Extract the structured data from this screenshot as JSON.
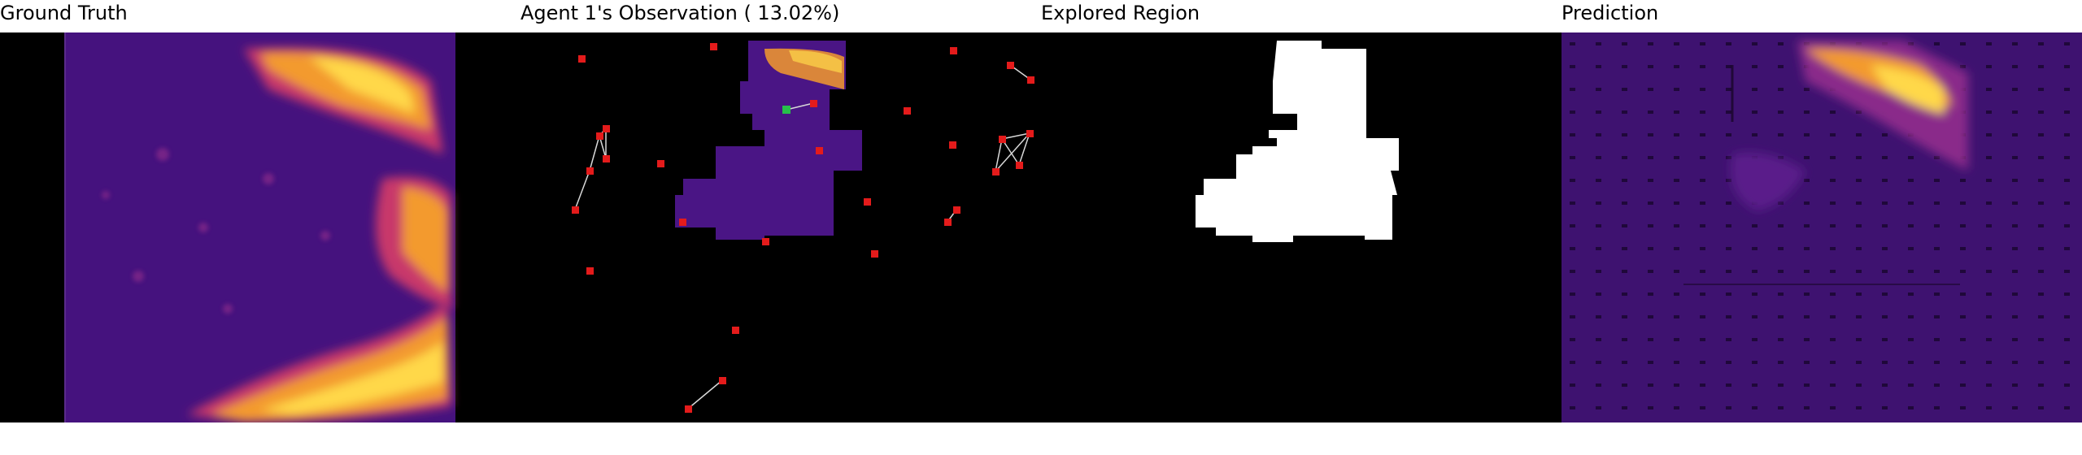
{
  "panels": {
    "ground_truth": {
      "title": "Ground Truth"
    },
    "observation": {
      "title": "Agent 1's Observation ( 13.02%)",
      "explored_fraction_percent": 13.02
    },
    "explored_region": {
      "title": "Explored Region"
    },
    "prediction": {
      "title": "Prediction"
    }
  },
  "colors": {
    "background": "#000000",
    "field_purple": "#4a1585",
    "hot_orange": "#f39a2d",
    "hot_yellow": "#ffd84a",
    "agent_marker": "#e41b1b",
    "current_agent": "#27c04a",
    "explored_mask": "#ffffff"
  }
}
